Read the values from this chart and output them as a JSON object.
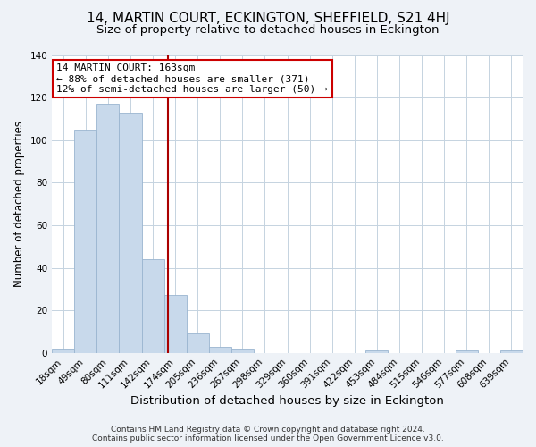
{
  "title": "14, MARTIN COURT, ECKINGTON, SHEFFIELD, S21 4HJ",
  "subtitle": "Size of property relative to detached houses in Eckington",
  "xlabel": "Distribution of detached houses by size in Eckington",
  "ylabel": "Number of detached properties",
  "bin_labels": [
    "18sqm",
    "49sqm",
    "80sqm",
    "111sqm",
    "142sqm",
    "174sqm",
    "205sqm",
    "236sqm",
    "267sqm",
    "298sqm",
    "329sqm",
    "360sqm",
    "391sqm",
    "422sqm",
    "453sqm",
    "484sqm",
    "515sqm",
    "546sqm",
    "577sqm",
    "608sqm",
    "639sqm"
  ],
  "bar_values": [
    2,
    105,
    117,
    113,
    44,
    27,
    9,
    3,
    2,
    0,
    0,
    0,
    0,
    0,
    1,
    0,
    0,
    0,
    1,
    0,
    1
  ],
  "bar_color": "#c8d9eb",
  "bar_edgecolor": "#9ab5d0",
  "annotation_title": "14 MARTIN COURT: 163sqm",
  "annotation_line1": "← 88% of detached houses are smaller (371)",
  "annotation_line2": "12% of semi-detached houses are larger (50) →",
  "annotation_box_facecolor": "#ffffff",
  "annotation_box_edgecolor": "#cc0000",
  "vline_color": "#aa0000",
  "ylim": [
    0,
    140
  ],
  "footer1": "Contains HM Land Registry data © Crown copyright and database right 2024.",
  "footer2": "Contains public sector information licensed under the Open Government Licence v3.0.",
  "background_color": "#eef2f7",
  "plot_bg_color": "#ffffff",
  "grid_color": "#c5d3e0",
  "title_fontsize": 11,
  "subtitle_fontsize": 9.5,
  "xlabel_fontsize": 9.5,
  "ylabel_fontsize": 8.5,
  "tick_fontsize": 7.5,
  "annotation_fontsize": 8,
  "footer_fontsize": 6.5
}
